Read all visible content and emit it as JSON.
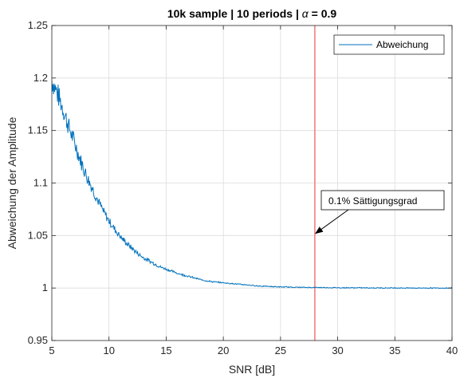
{
  "chart_data": {
    "type": "line",
    "title_prefix": "10k sample | 10 periods | ",
    "title_symbol": "α",
    "title_suffix": " = 0.9",
    "xlabel": "SNR [dB]",
    "ylabel": "Abweichung der Amplitude",
    "xlim": [
      5,
      40
    ],
    "ylim": [
      0.95,
      1.25
    ],
    "x_ticks": [
      "5",
      "10",
      "15",
      "20",
      "25",
      "30",
      "35",
      "40"
    ],
    "y_ticks": [
      "0.95",
      "1",
      "1.05",
      "1.1",
      "1.15",
      "1.2",
      "1.25"
    ],
    "x_tick_values": [
      5,
      10,
      15,
      20,
      25,
      30,
      35,
      40
    ],
    "y_tick_values": [
      0.95,
      1.0,
      1.05,
      1.1,
      1.15,
      1.2,
      1.25
    ],
    "grid": true,
    "legend_position": "top-right",
    "series": [
      {
        "name": "Abweichung",
        "color": "#0072BD",
        "x": [
          5,
          5.5,
          6,
          6.5,
          7,
          7.5,
          8,
          8.5,
          9,
          9.5,
          10,
          10.5,
          11,
          11.5,
          12,
          12.5,
          13,
          13.5,
          14,
          14.5,
          15,
          16,
          17,
          18,
          19,
          20,
          21,
          22,
          23,
          24,
          25,
          26,
          27,
          28,
          29,
          30,
          31,
          32,
          33,
          34,
          35,
          36,
          37,
          38,
          39,
          40
        ],
        "values": [
          1.198,
          1.185,
          1.17,
          1.153,
          1.138,
          1.122,
          1.108,
          1.096,
          1.084,
          1.073,
          1.064,
          1.056,
          1.049,
          1.043,
          1.038,
          1.033,
          1.029,
          1.026,
          1.023,
          1.02,
          1.018,
          1.014,
          1.011,
          1.008,
          1.006,
          1.005,
          1.004,
          1.003,
          1.002,
          1.0015,
          1.001,
          1.0008,
          1.0006,
          1.0005,
          1.0004,
          1.0003,
          1.0002,
          1.0002,
          1.0001,
          1.0001,
          1.0001,
          1.0,
          1.0,
          1.0,
          1.0,
          1.0
        ]
      }
    ],
    "vline": {
      "x": 28,
      "color": "#F08080"
    },
    "annotation": {
      "text": "0.1% Sättigungsgrad",
      "x": 28,
      "y": 1.052
    }
  }
}
